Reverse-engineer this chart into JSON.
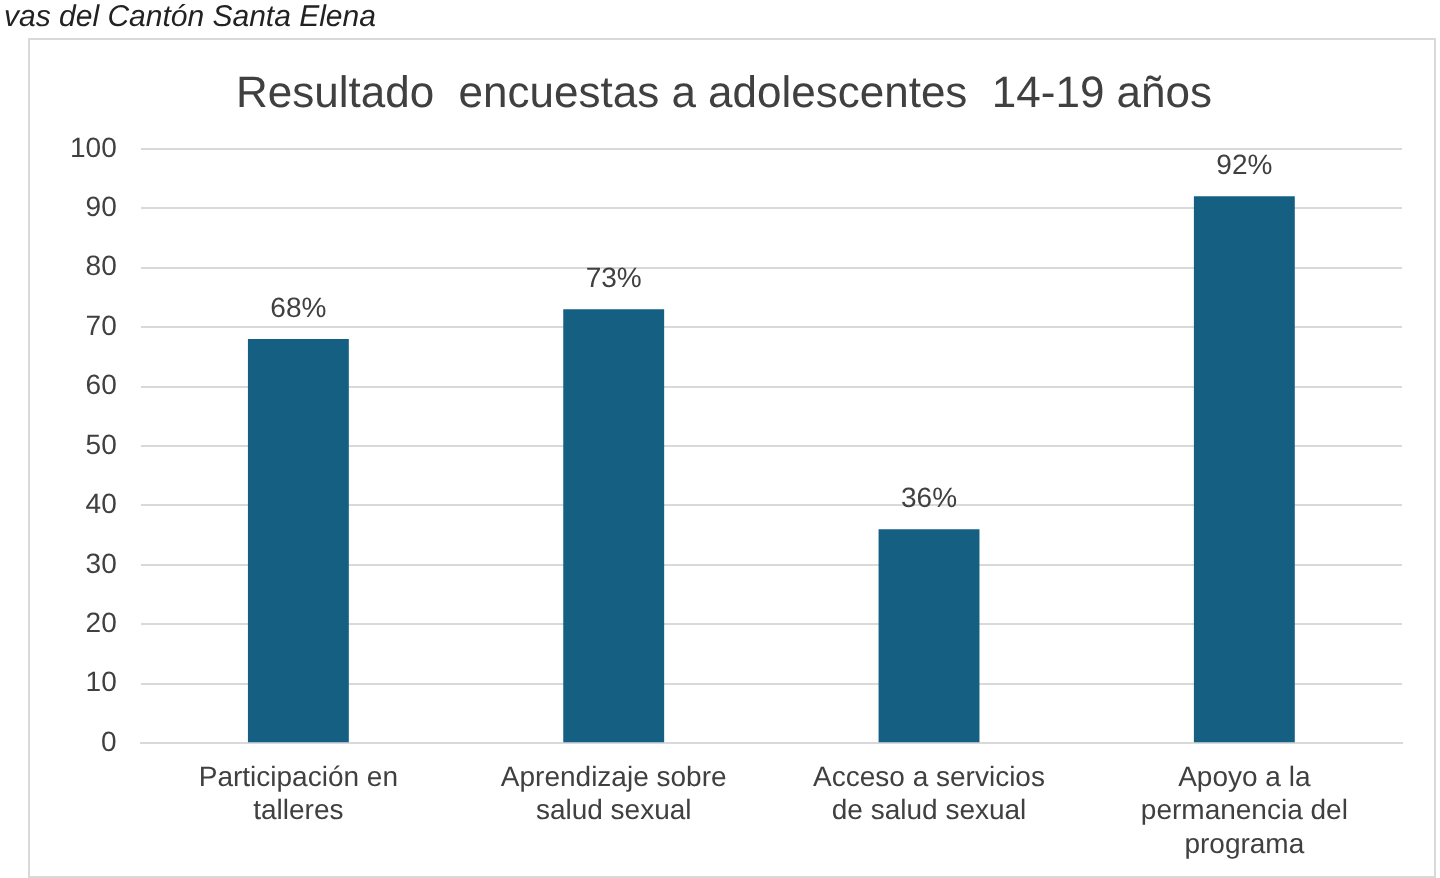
{
  "chart_data": {
    "type": "bar",
    "title": "Resultado  encuestas a adolescentes  14-19 años",
    "annotations": [
      "vas del Cantón Santa Elena"
    ],
    "categories": [
      "Participación en talleres",
      "Aprendizaje sobre salud sexual",
      "Acceso a servicios de salud sexual",
      "Apoyo a la permanencia del programa"
    ],
    "values": [
      68,
      73,
      36,
      92
    ],
    "value_labels": [
      "68%",
      "73%",
      "36%",
      "92%"
    ],
    "color": "#156082",
    "ylim": [
      0,
      100
    ],
    "yticks": [
      0,
      10,
      20,
      30,
      40,
      50,
      60,
      70,
      80,
      90,
      100
    ],
    "grid": "y",
    "legend": false
  }
}
